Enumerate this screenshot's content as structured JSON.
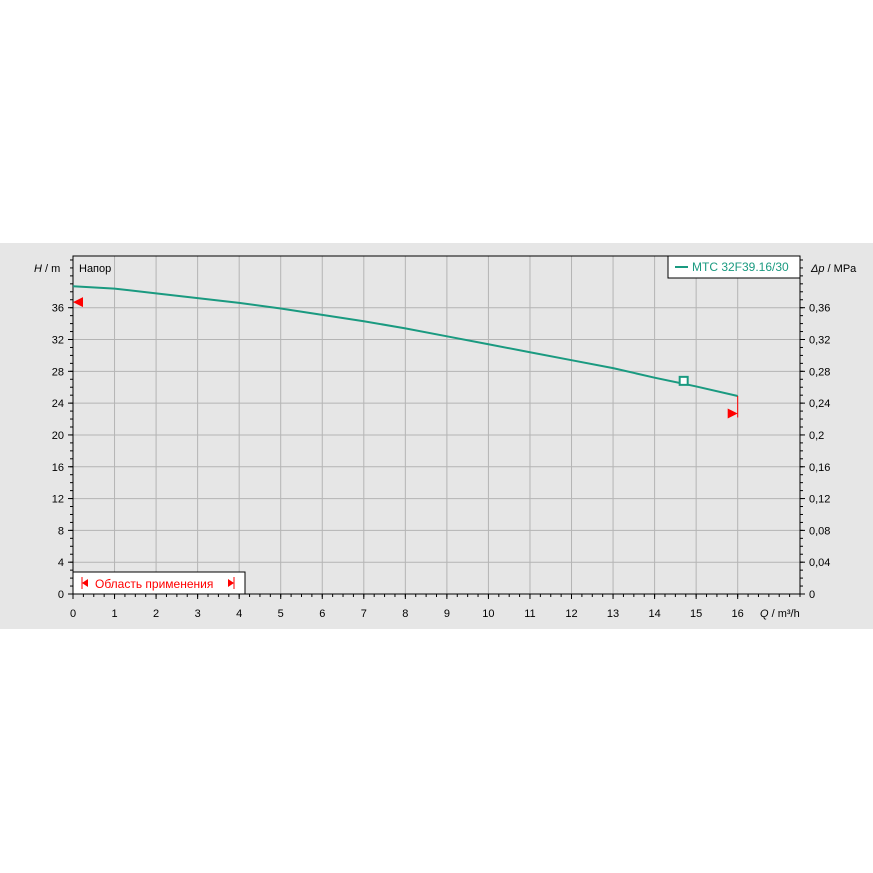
{
  "chart_data": {
    "type": "line",
    "title": "Напор",
    "xlabel_symbol": "Q",
    "xlabel_unit": " / m³/h",
    "ylabel_symbol": "H",
    "ylabel_unit": " / m",
    "y2label_symbol": "Δp",
    "y2label_unit": " / MPa",
    "xlim": [
      0,
      17.5
    ],
    "ylim": [
      0,
      42.5
    ],
    "y2lim": [
      0,
      0.425
    ],
    "x_ticks": [
      "0",
      "1",
      "2",
      "3",
      "4",
      "5",
      "6",
      "7",
      "8",
      "9",
      "10",
      "11",
      "12",
      "13",
      "14",
      "15",
      "16"
    ],
    "y_ticks": [
      "0",
      "4",
      "8",
      "12",
      "16",
      "20",
      "24",
      "28",
      "32",
      "36"
    ],
    "y2_ticks": [
      "0",
      "0,04",
      "0,08",
      "0,12",
      "0,16",
      "0,2",
      "0,24",
      "0,28",
      "0,32",
      "0,36"
    ],
    "grid": true,
    "legend_position": "top-right",
    "series": [
      {
        "name": "MTC 32F39.16/30",
        "color": "#1a9a80",
        "x": [
          0,
          1,
          2,
          3,
          4,
          5,
          6,
          7,
          8,
          9,
          10,
          11,
          12,
          13,
          14,
          15,
          16
        ],
        "y": [
          38.7,
          38.4,
          37.8,
          37.2,
          36.6,
          35.9,
          35.1,
          34.3,
          33.4,
          32.4,
          31.4,
          30.4,
          29.4,
          28.4,
          27.2,
          26.1,
          24.9
        ]
      }
    ],
    "operating_point": {
      "x": 14.7,
      "y": 26.8
    },
    "limit_markers": [
      {
        "x": 0,
        "y": 36.7,
        "direction": "left"
      },
      {
        "x": 16,
        "y": 22.7,
        "direction": "right"
      }
    ],
    "application_range_label": "Область применения",
    "marker_color": "#ff0000"
  }
}
